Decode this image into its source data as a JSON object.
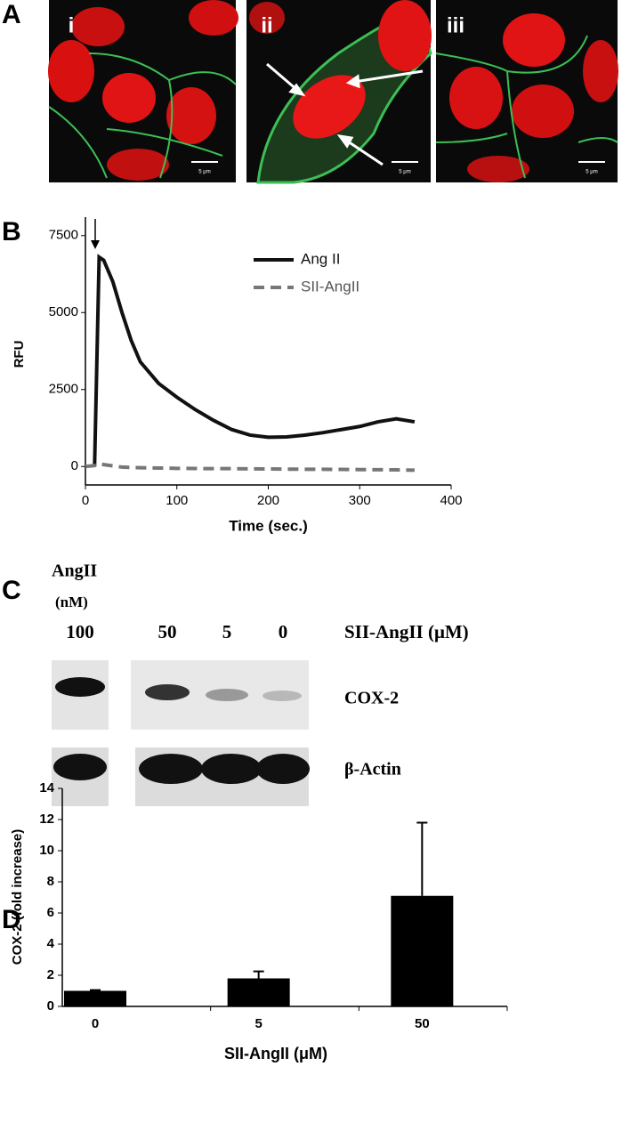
{
  "panel_a": {
    "label": "A",
    "images": [
      {
        "label": "i",
        "scale_bar": "5 μm"
      },
      {
        "label": "ii",
        "scale_bar": "5 μm"
      },
      {
        "label": "iii",
        "scale_bar": "5 μm"
      }
    ]
  },
  "chart_data": [
    {
      "type": "line",
      "panel_label": "B",
      "x_label": "Time (sec.)",
      "y_label": "RFU",
      "x": [
        0,
        10,
        15,
        20,
        30,
        40,
        50,
        60,
        80,
        100,
        120,
        140,
        160,
        180,
        200,
        220,
        240,
        260,
        280,
        300,
        320,
        340,
        360
      ],
      "series": [
        {
          "name": "Ang II",
          "color": "#111111",
          "dashed": false,
          "values": [
            null,
            0,
            6800,
            6700,
            6000,
            5000,
            4100,
            3400,
            2700,
            2250,
            1850,
            1500,
            1200,
            1020,
            950,
            960,
            1020,
            1100,
            1200,
            1300,
            1450,
            1550,
            1450
          ]
        },
        {
          "name": "SII-AngII",
          "color": "#777777",
          "dashed": true,
          "values": [
            0,
            30,
            80,
            60,
            20,
            -20,
            -30,
            -40,
            -50,
            -60,
            -65,
            -70,
            -70,
            -75,
            -80,
            -85,
            -90,
            -90,
            -95,
            -100,
            -105,
            -110,
            -120
          ]
        }
      ],
      "xlim": [
        0,
        400
      ],
      "xticks": [
        0,
        100,
        200,
        300,
        400
      ],
      "ylim": [
        -600,
        8100
      ],
      "yticks": [
        0,
        2500,
        5000,
        7500
      ],
      "legend": "top-right"
    },
    {
      "type": "bar",
      "panel_label": "D",
      "x_label": "SII-AngII (μM)",
      "y_label": "COX-2 (fold increase)",
      "categories": [
        "0",
        "5",
        "50"
      ],
      "values": [
        1.0,
        1.8,
        7.1
      ],
      "errors": [
        0.05,
        0.45,
        4.7
      ],
      "color": "#000000",
      "ylim": [
        0,
        14
      ],
      "yticks": [
        0,
        2,
        4,
        6,
        8,
        10,
        12,
        14
      ]
    }
  ],
  "panel_c": {
    "label": "C",
    "angii": "AngII",
    "angii_unit": "(nM)",
    "angii_dose": "100",
    "sii_doses": [
      "50",
      "5",
      "0"
    ],
    "sii_label": "SII-AngII (μM)",
    "band_labels": [
      "COX-2",
      "β-Actin"
    ]
  }
}
